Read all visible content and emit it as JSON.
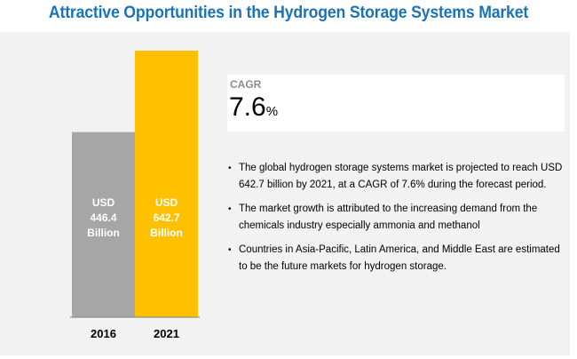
{
  "title": "Attractive Opportunities in the Hydrogen Storage Systems Market",
  "chart_data": {
    "type": "bar",
    "categories": [
      "2016",
      "2021"
    ],
    "values": [
      446.4,
      642.7
    ],
    "unit": "USD Billion",
    "bar_labels": [
      [
        "USD",
        "446.4",
        "Billion"
      ],
      [
        "USD",
        "642.7",
        "Billion"
      ]
    ],
    "colors": [
      "#a6a6a6",
      "#ffc000"
    ],
    "ylim": [
      0,
      642.7
    ],
    "title": "",
    "xlabel": "",
    "ylabel": ""
  },
  "cagr": {
    "label": "CAGR",
    "value": "7.6",
    "unit": "%"
  },
  "bullets": [
    {
      "text": "The global hydrogen storage systems market is projected to reach USD 642.7 billion by 2021, at a CAGR of 7.6% during the forecast period."
    },
    {
      "text": "The market growth is attributed to the increasing demand from the chemicals industry especially ammonia and methanol"
    },
    {
      "text": "Countries in Asia-Pacific, Latin America, and Middle East are estimated to be the  future markets for hydrogen storage."
    }
  ],
  "bullet_symbol": "•"
}
